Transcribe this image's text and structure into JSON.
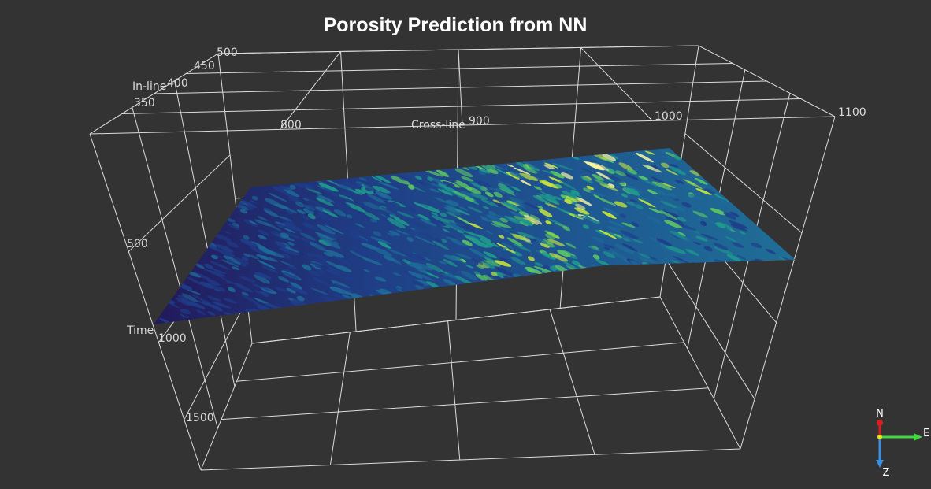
{
  "chart_data": {
    "type": "3d-surface",
    "title": "Porosity Prediction from  NN",
    "axes": {
      "inline": {
        "label": "In-line",
        "ticks": [
          "350",
          "400",
          "450",
          "500"
        ],
        "range": [
          350,
          500
        ]
      },
      "crossline": {
        "label": "Cross-line",
        "ticks": [
          "800",
          "900",
          "1000",
          "1100"
        ],
        "range": [
          700,
          1100
        ]
      },
      "time": {
        "label": "Time",
        "ticks": [
          "500",
          "1000",
          "1500"
        ],
        "range": [
          0,
          2000
        ]
      }
    },
    "grid": true,
    "colormap": [
      "#21124a",
      "#1f3d8a",
      "#1e6b98",
      "#1f9a8c",
      "#5ec962",
      "#c8e63a",
      "#fdf6a0"
    ],
    "compass": {
      "north": "N",
      "east": "E",
      "down": "Z"
    }
  }
}
